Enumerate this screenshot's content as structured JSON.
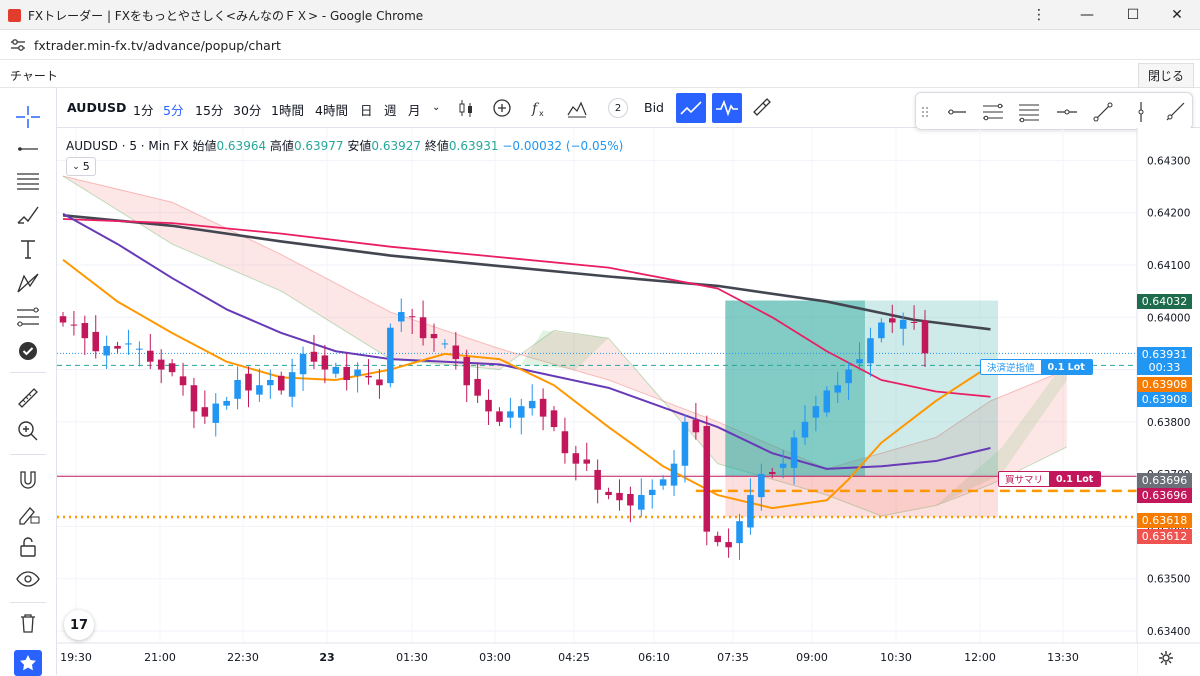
{
  "window": {
    "title": "FXトレーダー | FXをもっとやさしく<みんなのＦＸ> - Google Chrome"
  },
  "address": {
    "url": "fxtrader.min-fx.tv/advance/popup/chart"
  },
  "app": {
    "name": "チャート",
    "close": "閉じる"
  },
  "symbol": "AUDUSD",
  "timeframes": [
    "1分",
    "5分",
    "15分",
    "30分",
    "1時間",
    "4時間",
    "日",
    "週",
    "月"
  ],
  "active_timeframe": "5分",
  "toolbar": {
    "indicator_count": "2",
    "price_type": "Bid"
  },
  "legend": {
    "name": "AUDUSD · 5 · Min FX",
    "open_label": "始値",
    "open": "0.63964",
    "high_label": "高値",
    "high": "0.63977",
    "low_label": "安値",
    "low": "0.63927",
    "close_label": "終値",
    "close": "0.63931",
    "change": "−0.00032 (−0.05%)"
  },
  "indicator_toggle": "5",
  "orders": {
    "sl_label": "決済逆指値",
    "sl_lot": "0.1 Lot",
    "pos_label": "買サマリ",
    "pos_lot": "0.1 Lot"
  },
  "price_tags": {
    "ma": "0.64032",
    "current": "0.63931",
    "countdown": "00:33",
    "orange": "0.63908",
    "blue": "0.63908",
    "position": "0.63696",
    "red": "0.63696",
    "dotted": "0.63618",
    "red2": "0.63612"
  },
  "colors": {
    "up": "#26a69a",
    "down": "#ef5350",
    "candle_up": "#2196f3",
    "candle_down": "#c2185b",
    "ma_dark": "#434651",
    "ma_pink": "#e91e63",
    "ma_purple": "#673ab7",
    "ma_orange": "#ff9800",
    "accent": "#2962ff"
  },
  "chart_data": {
    "type": "candlestick",
    "symbol": "AUDUSD",
    "timeframe": "5 min",
    "x_labels": [
      "19:30",
      "21:00",
      "22:30",
      "23",
      "01:30",
      "03:00",
      "04:25",
      "06:10",
      "07:35",
      "09:00",
      "10:30",
      "12:00",
      "13:30"
    ],
    "y_ticks": [
      0.643,
      0.642,
      0.641,
      0.64,
      0.639,
      0.638,
      0.637,
      0.636,
      0.635,
      0.634
    ],
    "ylim": [
      0.63377,
      0.64362
    ],
    "ohlc_last": {
      "open": 0.63964,
      "high": 0.63977,
      "low": 0.63927,
      "close": 0.63931
    },
    "close_path": [
      0.6399,
      0.63985,
      0.6396,
      0.63935,
      0.63945,
      0.6394,
      0.6395,
      0.6394,
      0.63915,
      0.639,
      0.63895,
      0.6387,
      0.6382,
      0.6381,
      0.63835,
      0.6384,
      0.6388,
      0.6386,
      0.6387,
      0.6388,
      0.6386,
      0.63895,
      0.6393,
      0.63915,
      0.639,
      0.63905,
      0.6388,
      0.639,
      0.63885,
      0.6387,
      0.6398,
      0.6401,
      0.64,
      0.6396,
      0.6396,
      0.6395,
      0.6392,
      0.6387,
      0.6385,
      0.6382,
      0.638,
      0.6382,
      0.6383,
      0.6384,
      0.6381,
      0.6379,
      0.6374,
      0.6372,
      0.6372,
      0.6367,
      0.6366,
      0.6365,
      0.6364,
      0.6366,
      0.6367,
      0.6369,
      0.6372,
      0.638,
      0.6378,
      0.6359,
      0.6357,
      0.6356,
      0.6361,
      0.6366,
      0.637,
      0.637,
      0.6372,
      0.6377,
      0.638,
      0.6383,
      0.6386,
      0.6387,
      0.639,
      0.6392,
      0.6396,
      0.6399,
      0.6399,
      0.63995,
      0.6399,
      0.63931
    ],
    "ma_dark": [
      [
        0,
        0.64195
      ],
      [
        10,
        0.64175
      ],
      [
        20,
        0.64145
      ],
      [
        30,
        0.64118
      ],
      [
        40,
        0.64098
      ],
      [
        50,
        0.64078
      ],
      [
        60,
        0.6406
      ],
      [
        70,
        0.6403
      ],
      [
        78,
        0.63995
      ],
      [
        85,
        0.63977
      ]
    ],
    "ma_pink": [
      [
        0,
        0.64188
      ],
      [
        10,
        0.6418
      ],
      [
        20,
        0.6416
      ],
      [
        30,
        0.64135
      ],
      [
        40,
        0.64115
      ],
      [
        50,
        0.64095
      ],
      [
        60,
        0.64055
      ],
      [
        65,
        0.64
      ],
      [
        70,
        0.63935
      ],
      [
        75,
        0.6388
      ],
      [
        80,
        0.63858
      ],
      [
        85,
        0.63848
      ]
    ],
    "ma_purple": [
      [
        0,
        0.64198
      ],
      [
        5,
        0.6414
      ],
      [
        10,
        0.64075
      ],
      [
        15,
        0.64015
      ],
      [
        20,
        0.6397
      ],
      [
        25,
        0.63935
      ],
      [
        30,
        0.6392
      ],
      [
        40,
        0.6391
      ],
      [
        50,
        0.63865
      ],
      [
        60,
        0.6379
      ],
      [
        65,
        0.6374
      ],
      [
        70,
        0.6371
      ],
      [
        75,
        0.63715
      ],
      [
        80,
        0.63725
      ],
      [
        85,
        0.6375
      ]
    ],
    "ma_orange": [
      [
        0,
        0.6411
      ],
      [
        5,
        0.6403
      ],
      [
        10,
        0.6397
      ],
      [
        15,
        0.63915
      ],
      [
        20,
        0.63885
      ],
      [
        25,
        0.6388
      ],
      [
        30,
        0.639
      ],
      [
        35,
        0.6393
      ],
      [
        40,
        0.6392
      ],
      [
        45,
        0.6387
      ],
      [
        50,
        0.6379
      ],
      [
        55,
        0.63715
      ],
      [
        60,
        0.6366
      ],
      [
        65,
        0.63635
      ],
      [
        70,
        0.6365
      ],
      [
        72,
        0.6369
      ],
      [
        75,
        0.6376
      ],
      [
        80,
        0.6384
      ],
      [
        85,
        0.63908
      ]
    ],
    "cloud_span_a": [
      [
        0,
        0.6427
      ],
      [
        10,
        0.6422
      ],
      [
        20,
        0.6412
      ],
      [
        30,
        0.6401
      ],
      [
        40,
        0.6394
      ],
      [
        50,
        0.6388
      ],
      [
        60,
        0.638
      ],
      [
        70,
        0.6371
      ],
      [
        80,
        0.6377
      ],
      [
        85,
        0.6384
      ],
      [
        92,
        0.639
      ]
    ],
    "cloud_span_b": [
      [
        0,
        0.6427
      ],
      [
        10,
        0.6414
      ],
      [
        20,
        0.6405
      ],
      [
        30,
        0.6392
      ],
      [
        40,
        0.639
      ],
      [
        45,
        0.63975
      ],
      [
        50,
        0.6396
      ],
      [
        60,
        0.6372
      ],
      [
        70,
        0.6366
      ],
      [
        75,
        0.6362
      ],
      [
        80,
        0.6364
      ],
      [
        85,
        0.6368
      ],
      [
        92,
        0.63752
      ]
    ],
    "levels": {
      "position": 0.63696,
      "stop_loss": 0.63908,
      "take_profit": 0.64032,
      "dotted_orange": 0.63618,
      "dashed_orange": 0.63668,
      "current": 0.63931
    }
  }
}
